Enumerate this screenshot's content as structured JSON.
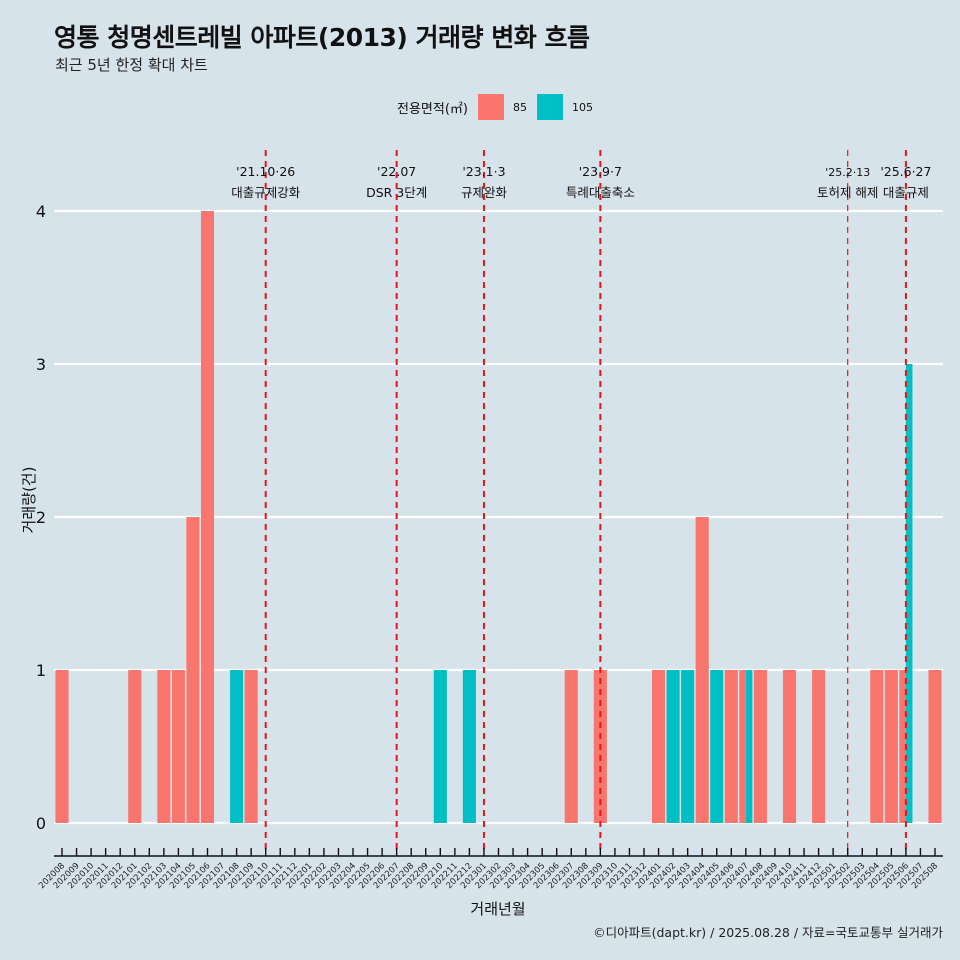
{
  "title": "영통 청명센트레빌 아파트(2013) 거래량 변화 흐름",
  "subtitle": "최근 5년 한정 확대 차트",
  "footer": "©디아파트(dapt.kr) / 2025.08.28 / 자료=국토교통부 실거래가",
  "legend": {
    "title": "전용면적(㎡)",
    "items": [
      {
        "label": "85",
        "color": "#f8766d"
      },
      {
        "label": "105",
        "color": "#00bfc4"
      }
    ]
  },
  "chart_data": {
    "type": "bar",
    "title": "영통 청명센트레빌 아파트(2013) 거래량 변화 흐름",
    "xlabel": "거래년월",
    "ylabel": "거래량(건)",
    "ylim": [
      0,
      4
    ],
    "yticks": [
      "0",
      "1",
      "2",
      "3",
      "4"
    ],
    "legend_position": "top",
    "categories": [
      "202008",
      "202009",
      "202010",
      "202011",
      "202012",
      "202101",
      "202102",
      "202103",
      "202104",
      "202105",
      "202106",
      "202107",
      "202108",
      "202109",
      "202110",
      "202111",
      "202112",
      "202201",
      "202202",
      "202203",
      "202204",
      "202205",
      "202206",
      "202207",
      "202208",
      "202209",
      "202210",
      "202211",
      "202212",
      "202301",
      "202302",
      "202303",
      "202304",
      "202305",
      "202306",
      "202307",
      "202308",
      "202309",
      "202310",
      "202311",
      "202312",
      "202401",
      "202402",
      "202403",
      "202404",
      "202405",
      "202406",
      "202407",
      "202408",
      "202409",
      "202410",
      "202411",
      "202412",
      "202501",
      "202502",
      "202503",
      "202504",
      "202505",
      "202506",
      "202507",
      "202508"
    ],
    "series": [
      {
        "name": "85",
        "color": "#f8766d",
        "values": {
          "202008": 1,
          "202101": 1,
          "202103": 1,
          "202104": 1,
          "202105": 2,
          "202106": 4,
          "202109": 1,
          "202307": 1,
          "202309": 1,
          "202401": 1,
          "202404": 2,
          "202406": 1,
          "202407": 1,
          "202408": 1,
          "202410": 1,
          "202412": 1,
          "202504": 1,
          "202505": 1,
          "202506": 1,
          "202508": 1
        }
      },
      {
        "name": "105",
        "color": "#00bfc4",
        "values": {
          "202108": 1,
          "202210": 1,
          "202212": 1,
          "202402": 1,
          "202403": 1,
          "202405": 1,
          "202407": 1,
          "202506": 3
        }
      }
    ],
    "annotations": [
      {
        "month": "202110",
        "date": "'21.10·26",
        "label": "대출규제강화",
        "style": "thick"
      },
      {
        "month": "202207",
        "date": "'22.07",
        "label": "DSR 3단계",
        "style": "thick"
      },
      {
        "month": "202301",
        "date": "'23.1·3",
        "label": "규제완화",
        "style": "thick"
      },
      {
        "month": "202309",
        "date": "'23.9·7",
        "label": "특례대출축소",
        "style": "thick"
      },
      {
        "month": "202502",
        "date": "'25.2·13",
        "label": "토허제 해제",
        "style": "thin"
      },
      {
        "month": "202506",
        "date": "'25.6·27",
        "label": "대출규제",
        "style": "thick"
      }
    ],
    "grid": true
  }
}
